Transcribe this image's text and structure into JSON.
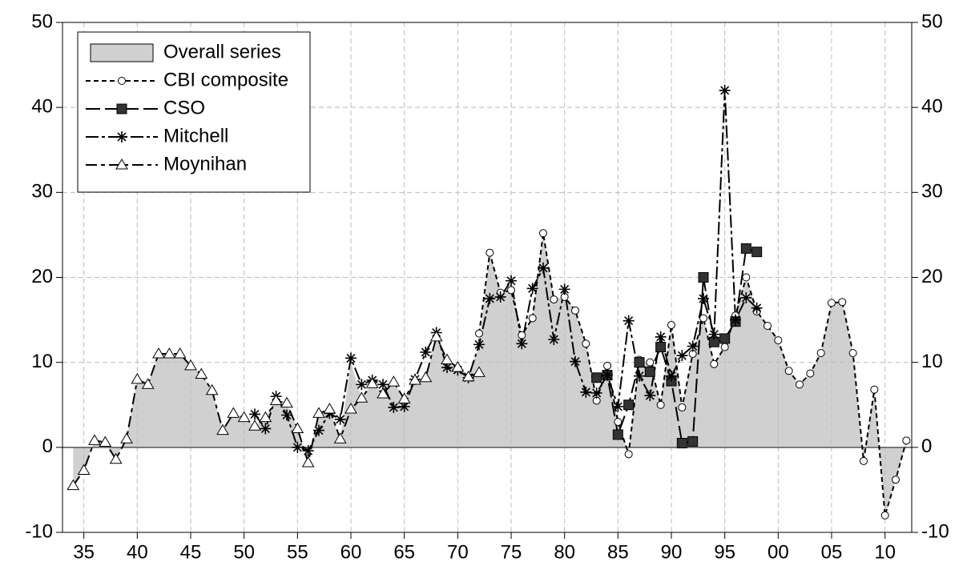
{
  "chart_data": {
    "type": "line",
    "xlim": [
      1933,
      2012.5
    ],
    "ylim": [
      -10,
      50
    ],
    "xticks": [
      {
        "value": 1935,
        "label": "35"
      },
      {
        "value": 1940,
        "label": "40"
      },
      {
        "value": 1945,
        "label": "45"
      },
      {
        "value": 1950,
        "label": "50"
      },
      {
        "value": 1955,
        "label": "55"
      },
      {
        "value": 1960,
        "label": "60"
      },
      {
        "value": 1965,
        "label": "65"
      },
      {
        "value": 1970,
        "label": "70"
      },
      {
        "value": 1975,
        "label": "75"
      },
      {
        "value": 1980,
        "label": "80"
      },
      {
        "value": 1985,
        "label": "85"
      },
      {
        "value": 1990,
        "label": "90"
      },
      {
        "value": 1995,
        "label": "95"
      },
      {
        "value": 2000,
        "label": "00"
      },
      {
        "value": 2005,
        "label": "05"
      },
      {
        "value": 2010,
        "label": "10"
      }
    ],
    "yticks": [
      -10,
      0,
      10,
      20,
      30,
      40,
      50
    ],
    "grid": true,
    "legend": "upper left",
    "series": [
      {
        "name": "Overall series",
        "type": "area",
        "color": "#d0d0d0",
        "x": [
          1934,
          1935,
          1936,
          1937,
          1938,
          1939,
          1940,
          1941,
          1942,
          1943,
          1944,
          1945,
          1946,
          1947,
          1948,
          1949,
          1950,
          1951,
          1952,
          1953,
          1954,
          1955,
          1956,
          1957,
          1958,
          1959,
          1960,
          1961,
          1962,
          1963,
          1964,
          1965,
          1966,
          1967,
          1968,
          1969,
          1970,
          1971,
          1972,
          1973,
          1974,
          1975,
          1976,
          1977,
          1978,
          1979,
          1980,
          1981,
          1982,
          1983,
          1984,
          1985,
          1986,
          1987,
          1988,
          1989,
          1990,
          1991,
          1992,
          1993,
          1994,
          1995,
          1996,
          1997,
          1998,
          1999,
          2000,
          2001,
          2002,
          2003,
          2004,
          2005,
          2006,
          2007,
          2008,
          2009,
          2010,
          2011,
          2012
        ],
        "values": [
          -4.5,
          -2.7,
          0.8,
          0.6,
          -1.4,
          1.0,
          8.0,
          7.4,
          11.0,
          11.0,
          11.0,
          9.6,
          8.6,
          6.7,
          2.0,
          4.0,
          3.5,
          2.5,
          3.5,
          5.5,
          5.2,
          2.2,
          -1.8,
          4.0,
          4.5,
          1.0,
          10.0,
          5.8,
          7.5,
          6.3,
          7.7,
          5.7,
          7.9,
          8.2,
          13.0,
          10.3,
          9.4,
          8.3,
          12.0,
          22.9,
          18.2,
          18.5,
          13.2,
          15.2,
          25.2,
          17.4,
          17.7,
          16.1,
          12.2,
          5.5,
          9.6,
          3.0,
          -0.8,
          10.3,
          10.0,
          5.0,
          14.4,
          4.7,
          11.0,
          15.2,
          9.8,
          11.8,
          15.5,
          20.0,
          16.0,
          14.3,
          12.6,
          9.0,
          7.4,
          8.7,
          11.1,
          17.0,
          17.1,
          11.1,
          -1.6,
          6.8,
          -8.0,
          -3.8,
          0.8
        ]
      },
      {
        "name": "CBI composite",
        "type": "line",
        "color": "#000000",
        "marker": "circle",
        "line_style": "short-dash",
        "x": [
          1972,
          1973,
          1974,
          1975,
          1976,
          1977,
          1978,
          1979,
          1980,
          1981,
          1982,
          1983,
          1984,
          1985,
          1986,
          1987,
          1988,
          1989,
          1990,
          1991,
          1992,
          1993,
          1994,
          1995,
          1996,
          1997,
          1998,
          1999,
          2000,
          2001,
          2002,
          2003,
          2004,
          2005,
          2006,
          2007,
          2008,
          2009,
          2010,
          2011,
          2012
        ],
        "values": [
          13.4,
          22.9,
          18.2,
          18.5,
          13.2,
          15.2,
          25.2,
          17.4,
          17.7,
          16.1,
          12.2,
          5.5,
          9.6,
          3.0,
          -0.8,
          10.3,
          10.0,
          5.0,
          14.4,
          4.7,
          11.0,
          15.2,
          9.8,
          11.8,
          15.5,
          20.0,
          16.0,
          14.3,
          12.6,
          9.0,
          7.4,
          8.7,
          11.1,
          17.0,
          17.1,
          11.1,
          -1.6,
          6.8,
          -8.0,
          -3.8,
          0.8
        ]
      },
      {
        "name": "CSO",
        "type": "line",
        "color": "#000000",
        "marker": "square",
        "line_style": "long-dash",
        "x": [
          1983,
          1984,
          1985,
          1986,
          1987,
          1988,
          1989,
          1990,
          1991,
          1992,
          1993,
          1994,
          1995,
          1996,
          1997,
          1998
        ],
        "values": [
          8.2,
          8.5,
          1.5,
          5.0,
          10.0,
          8.9,
          11.8,
          7.8,
          0.5,
          0.7,
          20.0,
          12.4,
          12.8,
          14.8,
          23.4,
          23.0
        ]
      },
      {
        "name": "Mitchell",
        "type": "line",
        "color": "#000000",
        "marker": "star",
        "line_style": "dash-dot",
        "x": [
          1951,
          1952,
          1953,
          1954,
          1955,
          1956,
          1957,
          1958,
          1959,
          1960,
          1961,
          1962,
          1963,
          1964,
          1965,
          1966,
          1967,
          1968,
          1969,
          1970,
          1971,
          1972,
          1973,
          1974,
          1975,
          1976,
          1977,
          1978,
          1979,
          1980,
          1981,
          1982,
          1983,
          1984,
          1985,
          1986,
          1987,
          1988,
          1989,
          1990,
          1991,
          1992,
          1993,
          1994,
          1995,
          1996,
          1997,
          1998
        ],
        "values": [
          3.9,
          2.2,
          6.0,
          3.8,
          0.0,
          -0.4,
          2.0,
          4.0,
          3.3,
          10.5,
          7.4,
          7.9,
          7.4,
          4.7,
          4.8,
          8.0,
          11.2,
          13.5,
          9.4,
          9.1,
          8.2,
          12.1,
          17.5,
          17.7,
          19.6,
          12.2,
          18.7,
          21.1,
          12.7,
          18.6,
          10.1,
          6.5,
          6.4,
          8.5,
          4.8,
          14.9,
          8.4,
          6.1,
          13.0,
          8.4,
          10.8,
          11.9,
          17.5,
          13.3,
          42.0,
          15.0,
          17.6,
          16.4
        ]
      },
      {
        "name": "Moynihan",
        "type": "line",
        "color": "#000000",
        "marker": "triangle",
        "line_style": "long-short-dash",
        "x": [
          1934,
          1935,
          1936,
          1937,
          1938,
          1939,
          1940,
          1941,
          1942,
          1943,
          1944,
          1945,
          1946,
          1947,
          1948,
          1949,
          1950,
          1951,
          1952,
          1953,
          1954,
          1955,
          1956,
          1957,
          1958,
          1959,
          1960,
          1961,
          1962,
          1963,
          1964,
          1965,
          1966,
          1967,
          1968,
          1969,
          1970,
          1971,
          1972
        ],
        "values": [
          -4.5,
          -2.7,
          0.8,
          0.6,
          -1.4,
          1.0,
          8.0,
          7.4,
          11.0,
          11.0,
          11.0,
          9.6,
          8.6,
          6.7,
          2.0,
          4.0,
          3.5,
          2.5,
          3.5,
          5.5,
          5.2,
          2.2,
          -1.8,
          4.0,
          4.5,
          1.0,
          4.5,
          5.8,
          7.5,
          6.3,
          7.7,
          5.7,
          7.9,
          8.2,
          13.0,
          10.3,
          9.4,
          8.3,
          8.8
        ]
      }
    ]
  }
}
